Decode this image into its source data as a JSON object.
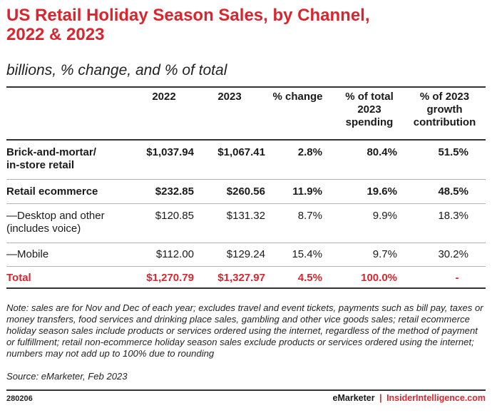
{
  "title": "US Retail Holiday Season Sales, by Channel,\n2022 & 2023",
  "title_line1": "US Retail Holiday Season Sales, by Channel,",
  "title_line2": "2022 & 2023",
  "subtitle": "billions, % change, and % of total",
  "columns": {
    "y2022": "2022",
    "y2023": "2023",
    "change": "% change",
    "pct_total_l1": "% of total",
    "pct_total_l2": "2023",
    "pct_total_l3": "spending",
    "growth_l1": "% of 2023",
    "growth_l2": "growth",
    "growth_l3": "contribution"
  },
  "rows": [
    {
      "label_l1": "Brick-and-mortar/",
      "label_l2": "in-store retail",
      "y2022": "$1,037.94",
      "y2023": "$1,067.41",
      "change": "2.8%",
      "pct_total": "80.4%",
      "growth": "51.5%"
    },
    {
      "label_l1": "Retail ecommerce",
      "label_l2": "",
      "y2022": "$232.85",
      "y2023": "$260.56",
      "change": "11.9%",
      "pct_total": "19.6%",
      "growth": "48.5%"
    },
    {
      "label_l1": "—Desktop and other",
      "label_l2": "(includes voice)",
      "y2022": "$120.85",
      "y2023": "$131.32",
      "change": "8.7%",
      "pct_total": "9.9%",
      "growth": "18.3%"
    },
    {
      "label_l1": "—Mobile",
      "label_l2": "",
      "y2022": "$112.00",
      "y2023": "$129.24",
      "change": "15.4%",
      "pct_total": "9.7%",
      "growth": "30.2%"
    },
    {
      "label_l1": "Total",
      "label_l2": "",
      "y2022": "$1,270.79",
      "y2023": "$1,327.97",
      "change": "4.5%",
      "pct_total": "100.0%",
      "growth": "-"
    }
  ],
  "note": "Note: sales are for Nov and Dec of each year; excludes travel and event tickets, payments such as bill pay, taxes or money transfers, food services and drinking place sales, gambling and other vice goods sales; retail ecommerce holiday season sales include products or services ordered using the internet, regardless of the method of payment or fulfillment; retail non-ecommerce holiday season sales exclude products or services ordered using the internet; numbers may not add up to 100% due to rounding",
  "source": "Source: eMarketer, Feb 2023",
  "chart_id": "280206",
  "brand_emarketer": "eMarketer",
  "brand_separator": "|",
  "brand_insider": "InsiderIntelligence.com",
  "colors": {
    "accent": "#d9262e",
    "text": "#1a1a1a",
    "rule": "#333333"
  }
}
